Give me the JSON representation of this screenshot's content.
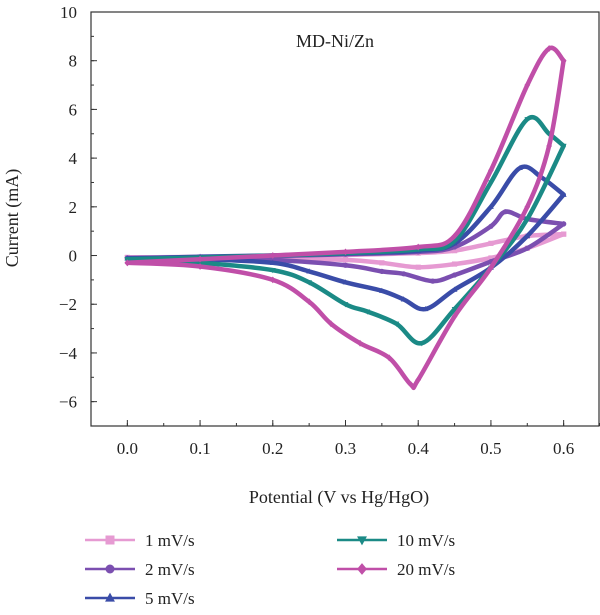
{
  "chart_data": {
    "type": "line",
    "title": "",
    "annotation": "MD-Ni/Zn",
    "xlabel": "Potential (V vs Hg/HgO)",
    "ylabel": "Current (mA)",
    "xlim": [
      -0.05,
      0.65
    ],
    "ylim": [
      -7,
      10
    ],
    "xticks": [
      "0.0",
      "0.1",
      "0.2",
      "0.3",
      "0.4",
      "0.5",
      "0.6"
    ],
    "xtick_values": [
      0.0,
      0.1,
      0.2,
      0.3,
      0.4,
      0.5,
      0.6
    ],
    "yticks": [
      "−6",
      "−4",
      "−2",
      "0",
      "2",
      "4",
      "6",
      "8",
      "10"
    ],
    "ytick_values": [
      -6,
      -4,
      -2,
      0,
      2,
      4,
      6,
      8,
      10
    ],
    "grid": false,
    "legend_position": "bottom",
    "series": [
      {
        "name": "1 mV/s",
        "color": "#e69ad2",
        "marker": "square",
        "anodic": [
          [
            0.0,
            -0.08
          ],
          [
            0.1,
            -0.06
          ],
          [
            0.2,
            -0.03
          ],
          [
            0.3,
            0.02
          ],
          [
            0.4,
            0.1
          ],
          [
            0.45,
            0.2
          ],
          [
            0.5,
            0.5
          ],
          [
            0.55,
            0.8
          ],
          [
            0.6,
            0.88
          ]
        ],
        "cathodic": [
          [
            0.6,
            0.88
          ],
          [
            0.55,
            0.3
          ],
          [
            0.5,
            -0.1
          ],
          [
            0.45,
            -0.35
          ],
          [
            0.4,
            -0.48
          ],
          [
            0.35,
            -0.3
          ],
          [
            0.3,
            -0.18
          ],
          [
            0.2,
            -0.1
          ],
          [
            0.1,
            -0.06
          ],
          [
            0.0,
            -0.08
          ]
        ]
      },
      {
        "name": "2 mV/s",
        "color": "#7b4fb0",
        "marker": "circle",
        "anodic": [
          [
            0.0,
            -0.1
          ],
          [
            0.1,
            -0.07
          ],
          [
            0.2,
            -0.02
          ],
          [
            0.3,
            0.05
          ],
          [
            0.4,
            0.15
          ],
          [
            0.45,
            0.35
          ],
          [
            0.5,
            1.2
          ],
          [
            0.52,
            1.8
          ],
          [
            0.55,
            1.5
          ],
          [
            0.6,
            1.3
          ]
        ],
        "cathodic": [
          [
            0.6,
            1.3
          ],
          [
            0.55,
            0.3
          ],
          [
            0.5,
            -0.25
          ],
          [
            0.45,
            -0.8
          ],
          [
            0.42,
            -1.05
          ],
          [
            0.38,
            -0.75
          ],
          [
            0.35,
            -0.65
          ],
          [
            0.3,
            -0.4
          ],
          [
            0.2,
            -0.18
          ],
          [
            0.1,
            -0.1
          ],
          [
            0.0,
            -0.1
          ]
        ]
      },
      {
        "name": "5 mV/s",
        "color": "#3a4ca8",
        "marker": "triangle-up",
        "anodic": [
          [
            0.0,
            -0.12
          ],
          [
            0.1,
            -0.05
          ],
          [
            0.2,
            0.0
          ],
          [
            0.3,
            0.08
          ],
          [
            0.4,
            0.2
          ],
          [
            0.45,
            0.5
          ],
          [
            0.5,
            2.0
          ],
          [
            0.54,
            3.6
          ],
          [
            0.57,
            3.2
          ],
          [
            0.6,
            2.5
          ]
        ],
        "cathodic": [
          [
            0.6,
            2.5
          ],
          [
            0.55,
            0.8
          ],
          [
            0.5,
            -0.5
          ],
          [
            0.45,
            -1.4
          ],
          [
            0.41,
            -2.2
          ],
          [
            0.38,
            -1.8
          ],
          [
            0.35,
            -1.45
          ],
          [
            0.3,
            -1.1
          ],
          [
            0.25,
            -0.65
          ],
          [
            0.2,
            -0.3
          ],
          [
            0.1,
            -0.15
          ],
          [
            0.0,
            -0.12
          ]
        ]
      },
      {
        "name": "10 mV/s",
        "color": "#1b8a86",
        "marker": "triangle-down",
        "anodic": [
          [
            0.0,
            -0.15
          ],
          [
            0.1,
            -0.08
          ],
          [
            0.2,
            0.0
          ],
          [
            0.3,
            0.1
          ],
          [
            0.4,
            0.25
          ],
          [
            0.45,
            0.6
          ],
          [
            0.5,
            3.0
          ],
          [
            0.55,
            5.6
          ],
          [
            0.58,
            5.0
          ],
          [
            0.6,
            4.5
          ]
        ],
        "cathodic": [
          [
            0.6,
            4.5
          ],
          [
            0.55,
            1.5
          ],
          [
            0.5,
            -0.5
          ],
          [
            0.45,
            -2.2
          ],
          [
            0.405,
            -3.6
          ],
          [
            0.37,
            -2.8
          ],
          [
            0.33,
            -2.3
          ],
          [
            0.3,
            -2.0
          ],
          [
            0.25,
            -1.1
          ],
          [
            0.2,
            -0.6
          ],
          [
            0.1,
            -0.3
          ],
          [
            0.0,
            -0.15
          ]
        ]
      },
      {
        "name": "20 mV/s",
        "color": "#c04fa8",
        "marker": "diamond",
        "anodic": [
          [
            0.0,
            -0.3
          ],
          [
            0.1,
            -0.15
          ],
          [
            0.2,
            0.0
          ],
          [
            0.3,
            0.15
          ],
          [
            0.4,
            0.35
          ],
          [
            0.45,
            0.8
          ],
          [
            0.5,
            3.5
          ],
          [
            0.55,
            7.0
          ],
          [
            0.58,
            8.5
          ],
          [
            0.6,
            8.0
          ]
        ],
        "cathodic": [
          [
            0.6,
            8.0
          ],
          [
            0.58,
            4.5
          ],
          [
            0.55,
            2.0
          ],
          [
            0.5,
            -0.5
          ],
          [
            0.45,
            -2.5
          ],
          [
            0.4,
            -5.1
          ],
          [
            0.39,
            -5.3
          ],
          [
            0.36,
            -4.2
          ],
          [
            0.32,
            -3.6
          ],
          [
            0.28,
            -2.8
          ],
          [
            0.25,
            -1.9
          ],
          [
            0.2,
            -1.0
          ],
          [
            0.1,
            -0.45
          ],
          [
            0.0,
            -0.3
          ]
        ]
      }
    ]
  }
}
